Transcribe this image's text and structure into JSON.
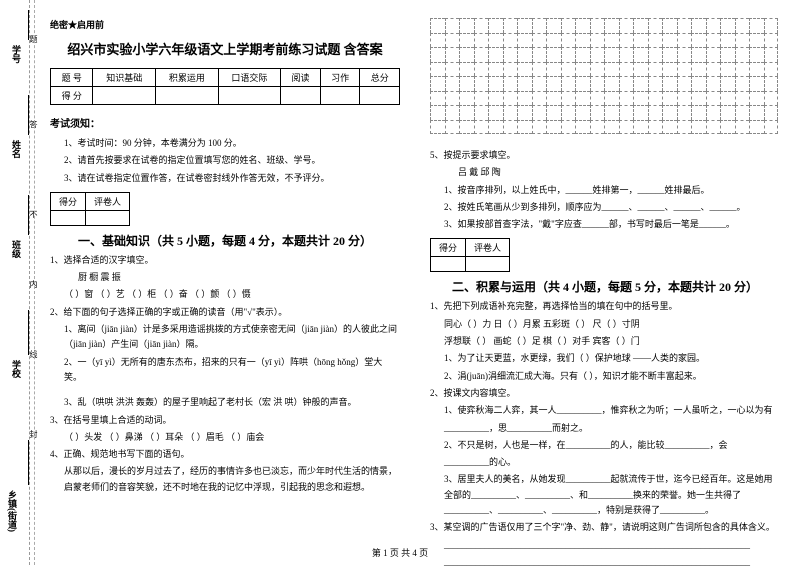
{
  "binding": {
    "labels": [
      "乡镇(街道)",
      "学校",
      "班级",
      "姓名",
      "学号"
    ],
    "marks": [
      "封",
      "线",
      "内",
      "不",
      "答",
      "题"
    ]
  },
  "header": {
    "secret": "绝密★启用前",
    "title": "绍兴市实验小学六年级语文上学期考前练习试题 含答案"
  },
  "scoreTable": {
    "row1": [
      "题  号",
      "知识基础",
      "积累运用",
      "口语交际",
      "阅读",
      "习作",
      "总分"
    ],
    "row2": [
      "得  分",
      "",
      "",
      "",
      "",
      "",
      ""
    ]
  },
  "examNotice": {
    "h": "考试须知：",
    "items": [
      "1、考试时间：90 分钟，本卷满分为 100 分。",
      "2、请首先按要求在试卷的指定位置填写您的姓名、班级、学号。",
      "3、请在试卷指定位置作答，在试卷密封线外作答无效，不予评分。"
    ]
  },
  "miniTable": {
    "c1": "得分",
    "c2": "评卷人"
  },
  "section1": {
    "title": "一、基础知识（共 5 小题，每题 4 分，本题共计 20 分）",
    "q1": "1、选择合适的汉字填空。",
    "q1a": "厨        橱         震            振",
    "q1b": "（    ）窗  （    ）艺  （    ）柜  （    ）奋  （    ）颤  （    ）慑",
    "q2": "2、给下面的句子选择正确的字或正确的读音（用\"√\"表示）。",
    "q2a": "1、离间（jiān jiàn）计是多采用造谣挑拨的方式使亲密无间（jiān jiàn）的人彼此之间（jiān jiàn）产生间（jiān jiàn）隔。",
    "q2b": "2、一（yī yì）无所有的唐东杰布，招来的只有一（yī yì）阵哄（hōng hǒng）堂大笑。",
    "q2c": "3、乱（哄哄 洪洪 轰轰）的屋子里响起了老村长（宏 洪 哄）钟般的声音。",
    "q3": "3、在括号里填上合适的动词。",
    "q3a": "（    ）头发  （    ）鼻涕  （    ）耳朵  （    ）眉毛  （    ）庙会",
    "q4": "4、正确、规范地书写下面的语句。",
    "q4a": "从那以后，漫长的岁月过去了，经历的事情许多也已淡忘，而少年时代生活的情景，启蒙老师们的音容笑貌，还不时地在我的记忆中浮现，引起我的思念和遐想。"
  },
  "right": {
    "q5": "5、按提示要求填空。",
    "q5a": "吕         戴         邱         陶",
    "q5b": "1、按音序排列，以上姓氏中，______姓排第一，______姓排最后。",
    "q5c": "2、按姓氏笔画从少到多排列，顺序应为______、______、______、______。",
    "q5d": "3、如果按部首查字法，\"戴\"字应查______部，书写时最后一笔是______。"
  },
  "section2": {
    "title": "二、积累与运用（共 4 小题，每题 5 分，本题共计 20 分）",
    "q1": "1、先把下列成语补充完整，再选择恰当的填在句中的括号里。",
    "q1a": "同心（  ）力     日（  ）月累     五彩斑（  ）     尺（  ）寸阴",
    "q1b": "浮想联（  ）     画蛇（  ）足     棋（  ）对手     宾客（  ）门",
    "q1c": "1、为了让天更蓝，水更绿，我们（        ）保护地球 ——人类的家园。",
    "q1d": "2、涓(juān)涓细流汇成大海。只有（        ），知识才能不断丰富起来。",
    "q2": "2、按课文内容填空。",
    "q2a": "1、使弈秋海二人弈，其一人__________，惟弈秋之为听；一人虽听之，一心以为有",
    "q2b": "__________，思__________而射之。",
    "q2c": "2、不只是树，人也是一样，在__________的人，能比较__________，会",
    "q2d": "__________的心。",
    "q2e": "3、居里夫人的美名，从她发现__________起就流传于世，迄今已经百年。这是她用全部的__________、__________、和__________换来的荣誉。她一生共得了__________、__________、__________，特别是获得了__________。",
    "q3": "3、某空调的广告语仅用了三个字\"净、劲、静\"，请说明这则广告词所包含的具体含义。",
    "q3a": "____________________________________________________________________",
    "q3b": "____________________________________________________________________"
  },
  "footer": "第 1 页 共 4 页",
  "grid": {
    "rows": 8,
    "cols": 24
  },
  "colors": {
    "text": "#000",
    "dash": "#888",
    "bg": "#fff"
  }
}
